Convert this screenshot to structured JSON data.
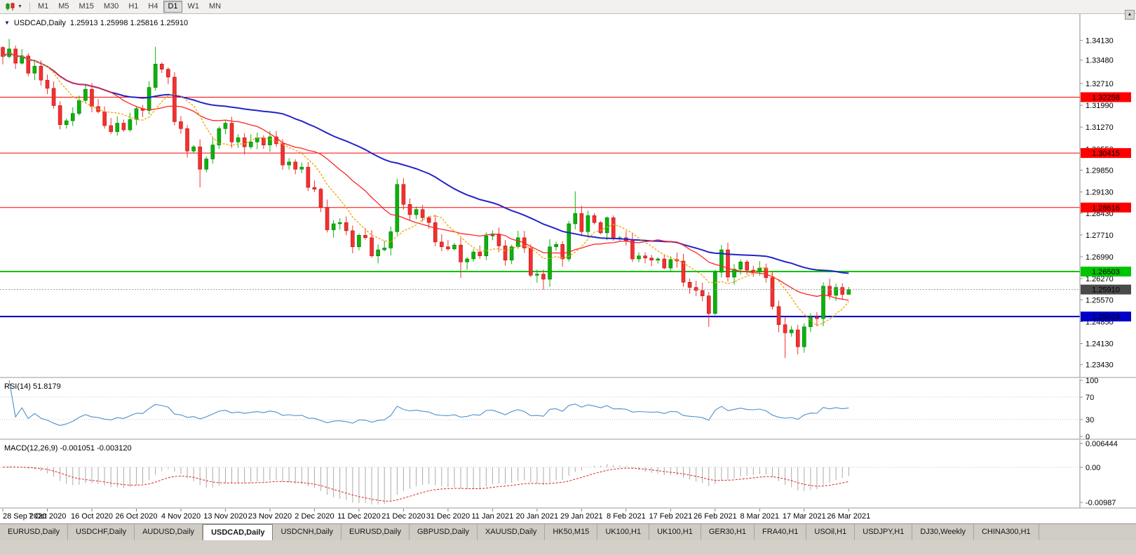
{
  "toolbar": {
    "chart_type_icon": "candlestick-chart-icon",
    "timeframes": [
      "M1",
      "M5",
      "M15",
      "M30",
      "H1",
      "H4",
      "D1",
      "W1",
      "MN"
    ],
    "active_timeframe": "D1"
  },
  "title_bar": {
    "symbol": "USDCAD,Daily",
    "ohlc": "1.25913 1.25998 1.25816 1.25910"
  },
  "chart_data": {
    "type": "candlestick",
    "symbol": "USDCAD",
    "timeframe": "Daily",
    "ohlc_display": {
      "open": "1.25913",
      "high": "1.25998",
      "low": "1.25816",
      "close": "1.25910"
    },
    "price_scale": {
      "top": 1.344,
      "bottom": 1.231,
      "ticks": [
        1.3413,
        1.3348,
        1.3271,
        1.3199,
        1.3127,
        1.3055,
        1.2985,
        1.2913,
        1.2843,
        1.2771,
        1.2699,
        1.2627,
        1.2557,
        1.2485,
        1.2413,
        1.2343
      ]
    },
    "x_labels": [
      "28 Sep 2020",
      "7 Oct 2020",
      "16 Oct 2020",
      "26 Oct 2020",
      "4 Nov 2020",
      "13 Nov 2020",
      "23 Nov 2020",
      "2 Dec 2020",
      "11 Dec 2020",
      "21 Dec 2020",
      "31 Dec 2020",
      "11 Jan 2021",
      "20 Jan 2021",
      "29 Jan 2021",
      "8 Feb 2021",
      "17 Feb 2021",
      "26 Feb 2021",
      "8 Mar 2021",
      "17 Mar 2021",
      "26 Mar 2021"
    ],
    "x_label_step": 7,
    "candles": {
      "first_open": 1.339,
      "closes": [
        1.336,
        1.3385,
        1.3338,
        1.3362,
        1.3305,
        1.3328,
        1.3282,
        1.3255,
        1.3198,
        1.3135,
        1.3148,
        1.3172,
        1.3215,
        1.3252,
        1.3195,
        1.3178,
        1.3132,
        1.3112,
        1.314,
        1.3118,
        1.3152,
        1.3188,
        1.3182,
        1.3258,
        1.3335,
        1.3318,
        1.3292,
        1.3145,
        1.3122,
        1.3048,
        1.3062,
        1.2988,
        1.3022,
        1.3068,
        1.3122,
        1.314,
        1.3078,
        1.3092,
        1.3062,
        1.3078,
        1.3092,
        1.3068,
        1.3095,
        1.3072,
        1.3002,
        1.3012,
        1.2988,
        1.2995,
        1.2928,
        1.2922,
        1.2862,
        1.2788,
        1.2808,
        1.2812,
        1.2785,
        1.2732,
        1.277,
        1.2762,
        1.2702,
        1.2722,
        1.2728,
        1.2782,
        1.2938,
        1.2872,
        1.2838,
        1.2855,
        1.2828,
        1.2812,
        1.2748,
        1.2732,
        1.2725,
        1.2738,
        1.2682,
        1.2692,
        1.2715,
        1.2702,
        1.2768,
        1.2772,
        1.2735,
        1.2688,
        1.2732,
        1.2762,
        1.2728,
        1.2638,
        1.2642,
        1.2625,
        1.2732,
        1.274,
        1.2692,
        1.2808,
        1.2842,
        1.2782,
        1.2835,
        1.2812,
        1.2778,
        1.2828,
        1.2758,
        1.2762,
        1.2752,
        1.2692,
        1.2702,
        1.2695,
        1.2688,
        1.2692,
        1.2662,
        1.269,
        1.2685,
        1.2615,
        1.2598,
        1.2588,
        1.257,
        1.2512,
        1.2648,
        1.2722,
        1.2632,
        1.2658,
        1.2682,
        1.2655,
        1.265,
        1.2662,
        1.263,
        1.2535,
        1.2475,
        1.2448,
        1.2458,
        1.2402,
        1.2468,
        1.25,
        1.2495,
        1.2602,
        1.2572,
        1.2598,
        1.2575,
        1.2591
      ],
      "overrides": {
        "1": {
          "h": 1.3418
        },
        "24": {
          "h": 1.3392
        },
        "31": {
          "l": 1.2928
        },
        "62": {
          "h": 1.2957
        },
        "72": {
          "l": 1.2629
        },
        "85": {
          "l": 1.259
        },
        "90": {
          "h": 1.2915
        },
        "111": {
          "l": 1.2468
        },
        "123": {
          "l": 1.2365
        },
        "133": {
          "h": 1.25998,
          "l": 1.25816
        }
      }
    },
    "moving_averages": [
      {
        "period": 45,
        "color": "#2424c8",
        "width": 2,
        "dash": ""
      },
      {
        "period": 18,
        "color": "#ff2424",
        "width": 1.3,
        "dash": ""
      },
      {
        "period": 8,
        "color": "#efa400",
        "width": 1.3,
        "dash": "3,2"
      }
    ],
    "hlines": [
      {
        "price": 1.32258,
        "label": "1.32258",
        "color": "#ff0000",
        "width": 1
      },
      {
        "price": 1.30415,
        "label": "1.30415",
        "color": "#ff0000",
        "width": 1
      },
      {
        "price": 1.28616,
        "label": "1.28616",
        "color": "#ff0000",
        "width": 1
      },
      {
        "price": 1.26503,
        "label": "1.26503",
        "color": "#00c400",
        "width": 2
      },
      {
        "price": 1.25019,
        "label": "1.25019",
        "color": "#0000c8",
        "width": 2
      }
    ],
    "bid_line": {
      "price": 1.2591,
      "label": "1.25910",
      "line_color": "#9a9a9a",
      "badge_color": "#4a4a4a"
    },
    "colors": {
      "up": "#0bb30b",
      "up_border": "#077a07",
      "down": "#f33030",
      "down_border": "#bb1616",
      "background": "#ffffff",
      "axis_text": "#000000",
      "grid_dotted": "#c8c8c8"
    },
    "indicators": {
      "rsi": {
        "header": "RSI(14) 51.8179",
        "period": 14,
        "current": 51.8179,
        "levels": [
          100,
          70,
          30,
          0
        ],
        "level_lines": [
          70,
          30
        ],
        "color": "#4f8fca"
      },
      "macd": {
        "header": "MACD(12,26,9) -0.001051 -0.003120",
        "fast": 12,
        "slow": 26,
        "signal": 9,
        "current_macd": -0.001051,
        "current_signal": -0.00312,
        "scale_labels": [
          "0.006444",
          "0.00",
          "-0.00987"
        ],
        "max": 0.006444,
        "min": -0.00987,
        "histogram_color": "#ababab",
        "signal_color": "#e02020"
      }
    }
  },
  "tabs": {
    "active_index": 3,
    "items": [
      "EURUSD,Daily",
      "USDCHF,Daily",
      "AUDUSD,Daily",
      "USDCAD,Daily",
      "USDCNH,Daily",
      "EURUSD,Daily",
      "GBPUSD,Daily",
      "XAUUSD,Daily",
      "HK50,M15",
      "UK100,H1",
      "UK100,H1",
      "GER30,H1",
      "FRA40,H1",
      "USOil,H1",
      "USDJPY,H1",
      "DJ30,Weekly",
      "CHINA300,H1"
    ]
  }
}
